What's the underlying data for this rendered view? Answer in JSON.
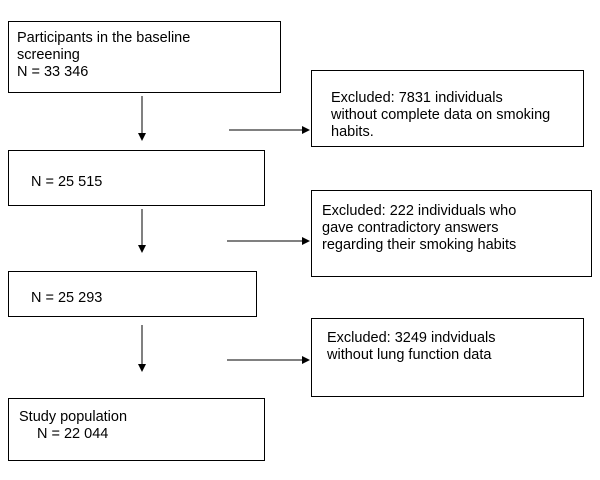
{
  "boxes": {
    "participants": {
      "lines": [
        "Participants in the baseline",
        "screening",
        "N = 33 346"
      ]
    },
    "n1": {
      "text": "N = 25 515"
    },
    "n2": {
      "text": "N = 25 293"
    },
    "study": {
      "lines": [
        "Study population",
        "N = 22 044"
      ]
    },
    "excluded_1": {
      "lines": [
        "Excluded: 7831 individuals",
        "without complete data on smoking",
        "habits."
      ]
    },
    "excluded_2": {
      "lines": [
        "Excluded: 222 individuals who",
        "gave contradictory answers",
        "regarding their smoking habits"
      ]
    },
    "excluded_3": {
      "lines": [
        "Excluded: 3249 indviduals",
        "without lung function data"
      ]
    }
  }
}
